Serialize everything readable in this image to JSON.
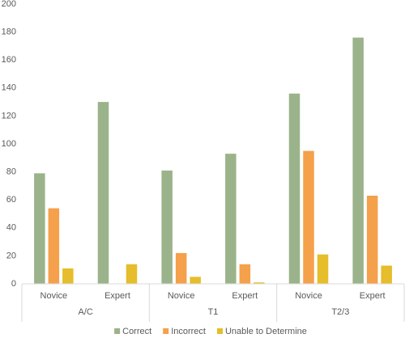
{
  "chart_data": {
    "type": "bar",
    "categories": [
      "Novice",
      "Expert",
      "Novice",
      "Expert",
      "Novice",
      "Expert"
    ],
    "groups": [
      "A/C",
      "T1",
      "T2/3"
    ],
    "series": [
      {
        "name": "Correct",
        "color": "#9bb38a",
        "values": [
          79,
          130,
          81,
          93,
          136,
          176
        ]
      },
      {
        "name": "Incorrect",
        "color": "#f5a04a",
        "values": [
          54,
          0,
          22,
          14,
          95,
          63
        ]
      },
      {
        "name": "Unable to Determine",
        "color": "#e6bd2a",
        "values": [
          11,
          14,
          5,
          1,
          21,
          13
        ]
      }
    ],
    "ylim": [
      0,
      200
    ],
    "yticks": [
      0,
      20,
      40,
      60,
      80,
      100,
      120,
      140,
      160,
      180,
      200
    ],
    "grid": false,
    "legend": "bottom"
  }
}
